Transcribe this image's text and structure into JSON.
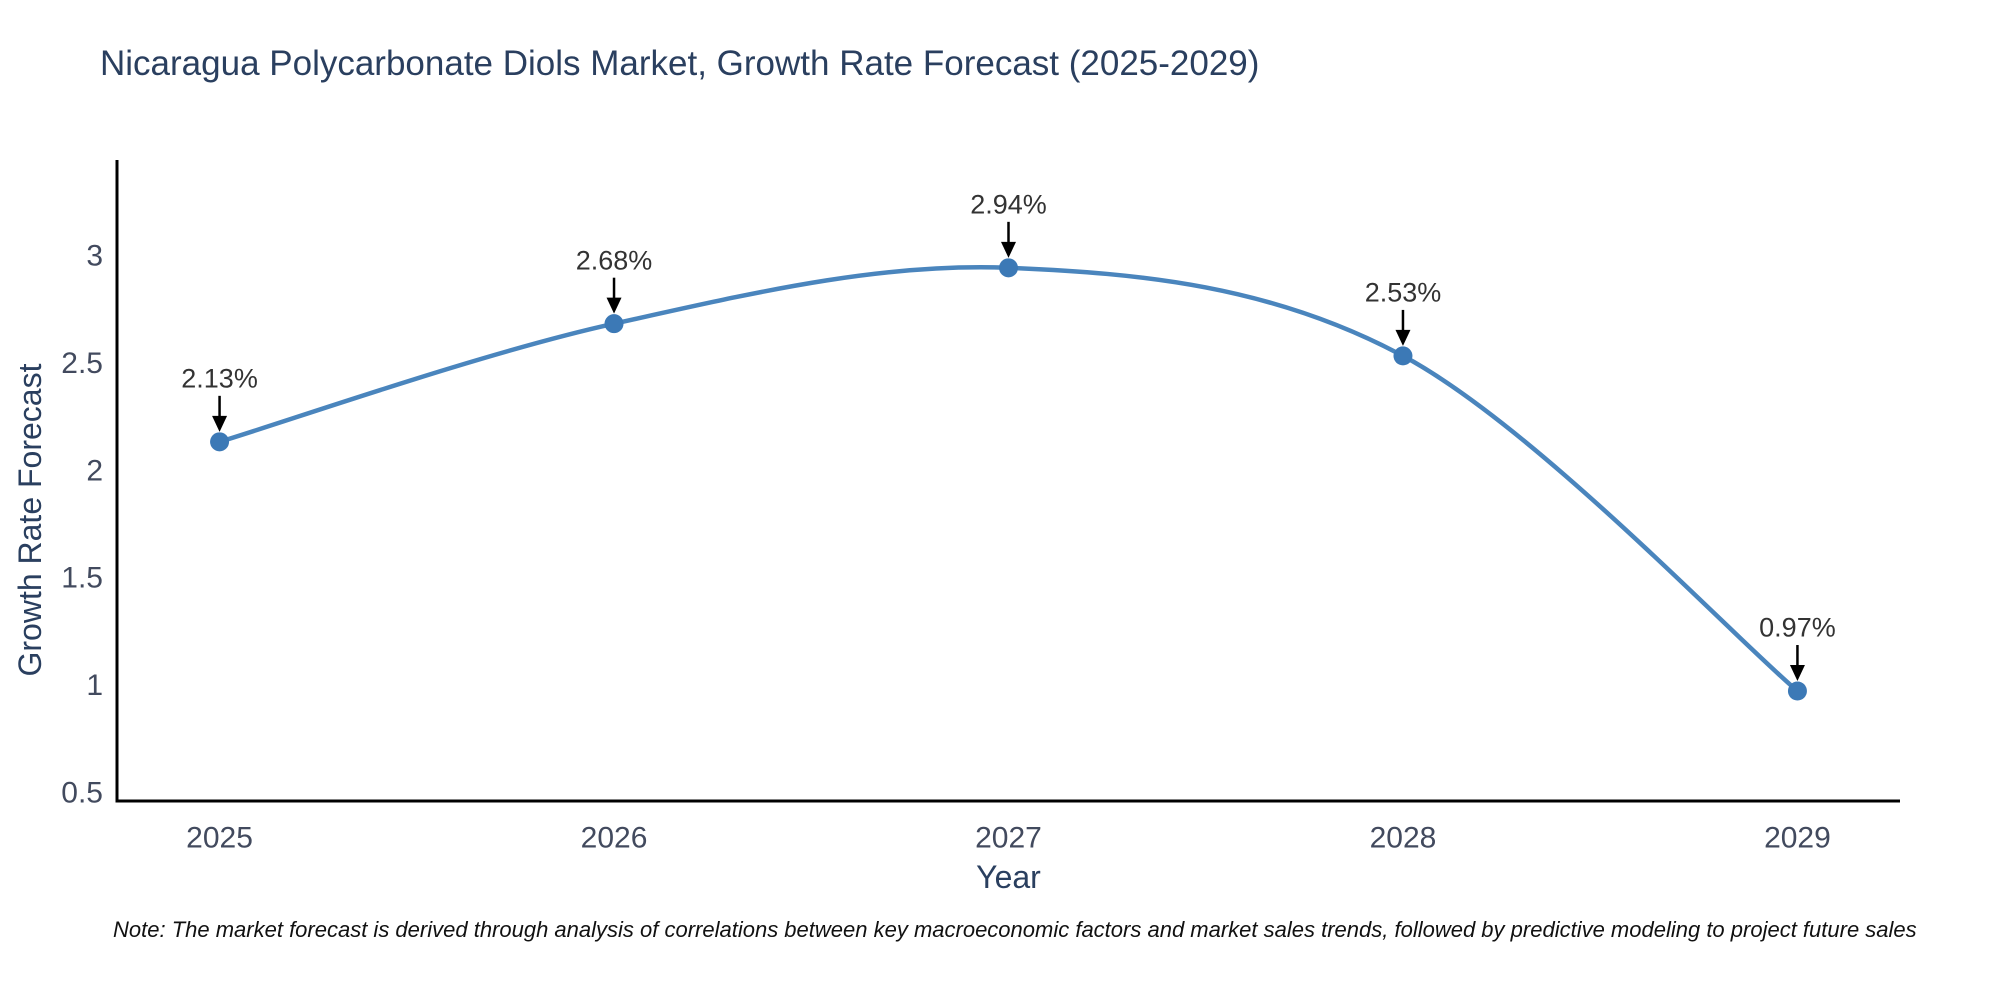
{
  "title": "Nicaragua Polycarbonate Diols Market, Growth Rate Forecast (2025-2029)",
  "note": "Note: The market forecast is derived through analysis of correlations between key macroeconomic factors and market sales trends, followed by predictive modeling to project future sales",
  "chart_data": {
    "type": "line",
    "title": "Nicaragua Polycarbonate Diols Market, Growth Rate Forecast (2025-2029)",
    "xlabel": "Year",
    "ylabel": "Growth Rate Forecast",
    "x": [
      2025,
      2026,
      2027,
      2028,
      2029
    ],
    "y": [
      2.13,
      2.68,
      2.94,
      2.53,
      0.97
    ],
    "series": [
      {
        "name": "Growth Rate Forecast",
        "values": [
          2.13,
          2.68,
          2.94,
          2.53,
          0.97
        ]
      }
    ],
    "point_labels": [
      "2.13%",
      "2.68%",
      "2.94%",
      "2.53%",
      "0.97%"
    ],
    "x_ticks": [
      "2025",
      "2026",
      "2027",
      "2028",
      "2029"
    ],
    "y_ticks": [
      0.5,
      1,
      1.5,
      2,
      2.5,
      3
    ],
    "xlim": [
      2024.74,
      2029.26
    ],
    "ylim": [
      0.458,
      3.442
    ],
    "line_shape": "spline",
    "grid": false,
    "legend": "none",
    "colors": {
      "line": "#4a85bd",
      "marker": "#3c79b6",
      "arrow": "#000000",
      "axis": "#000000",
      "title_text": "#2a3f5f",
      "axis_title_text": "#2a3f5f",
      "tick_text": "#424a5e",
      "annotation_text": "#333333"
    }
  }
}
